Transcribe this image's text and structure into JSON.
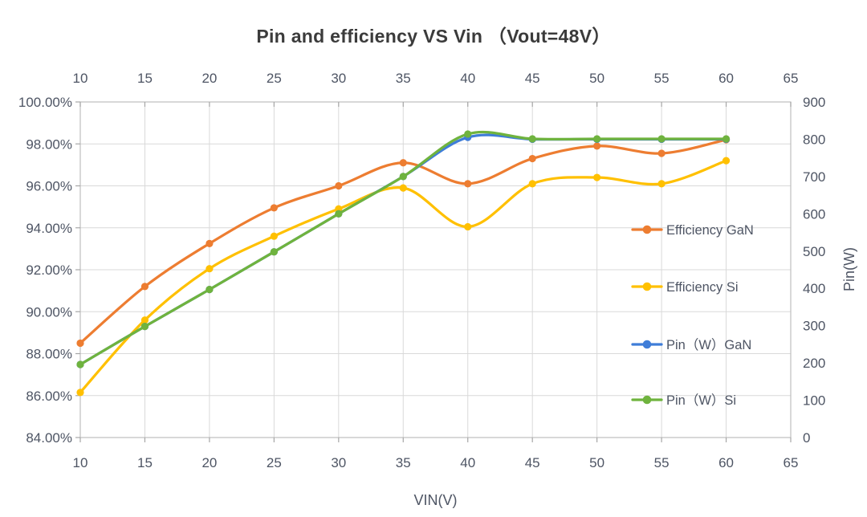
{
  "page": {
    "background": "#FFFFFF"
  },
  "style": {
    "title_color": "#3B3B3B",
    "label_color": "#4E5564",
    "grid_color": "#D9D9D9",
    "frame_color": "#BFBFBF",
    "tick_color": "#A6A6A6"
  },
  "chart_data": {
    "type": "line",
    "smooth_lines": true,
    "title": "Pin and efficiency VS Vin （Vout=48V）",
    "xlabel": "VIN(V)",
    "ylabel_right": "Pin(W)",
    "x_axis": {
      "min": 10,
      "max": 65,
      "tick_values": [
        10,
        15,
        20,
        25,
        30,
        35,
        40,
        45,
        50,
        55,
        60,
        65
      ],
      "tick_labels": [
        "10",
        "15",
        "20",
        "25",
        "30",
        "35",
        "40",
        "45",
        "50",
        "55",
        "60",
        "65"
      ],
      "labels_shown_top_and_bottom": true
    },
    "y_left_axis": {
      "min": 84,
      "max": 100,
      "tick_values": [
        100,
        98,
        96,
        94,
        92,
        90,
        88,
        86,
        84
      ],
      "tick_labels": [
        "100.00%",
        "98.00%",
        "96.00%",
        "94.00%",
        "92.00%",
        "90.00%",
        "88.00%",
        "86.00%",
        "84.00%"
      ]
    },
    "y_right_axis": {
      "min": 0,
      "max": 900,
      "tick_values": [
        900,
        800,
        700,
        600,
        500,
        400,
        300,
        200,
        100,
        0
      ],
      "tick_labels": [
        "900",
        "800",
        "700",
        "600",
        "500",
        "400",
        "300",
        "200",
        "100",
        "0"
      ]
    },
    "x": [
      10,
      15,
      20,
      25,
      30,
      35,
      40,
      45,
      50,
      55,
      60
    ],
    "series": [
      {
        "name": "Efficiency GaN",
        "axis": "left",
        "color": "#ED7D31",
        "values": [
          88.5,
          91.2,
          93.25,
          94.95,
          96.0,
          97.1,
          96.1,
          97.3,
          97.9,
          97.55,
          98.2
        ]
      },
      {
        "name": "Efficiency Si",
        "axis": "left",
        "color": "#FFC000",
        "values": [
          86.15,
          89.6,
          92.05,
          93.6,
          94.9,
          95.9,
          94.05,
          96.1,
          96.4,
          96.1,
          97.2
        ]
      },
      {
        "name": "Pin（W）GaN",
        "axis": "right",
        "color": "#3F7DD8",
        "values": [
          196,
          298,
          397,
          498,
          600,
          700,
          805,
          800,
          800,
          800,
          800
        ]
      },
      {
        "name": "Pin（W）Si",
        "axis": "right",
        "color": "#6FB33E",
        "values": [
          196,
          298,
          397,
          498,
          600,
          700,
          814,
          801,
          801,
          801,
          801
        ]
      }
    ],
    "legend": {
      "position": "inside-right",
      "entries": [
        "Efficiency GaN",
        "Efficiency Si",
        "Pin（W）GaN",
        "Pin（W）Si"
      ]
    },
    "grid": {
      "horizontal": true,
      "vertical": true
    }
  }
}
